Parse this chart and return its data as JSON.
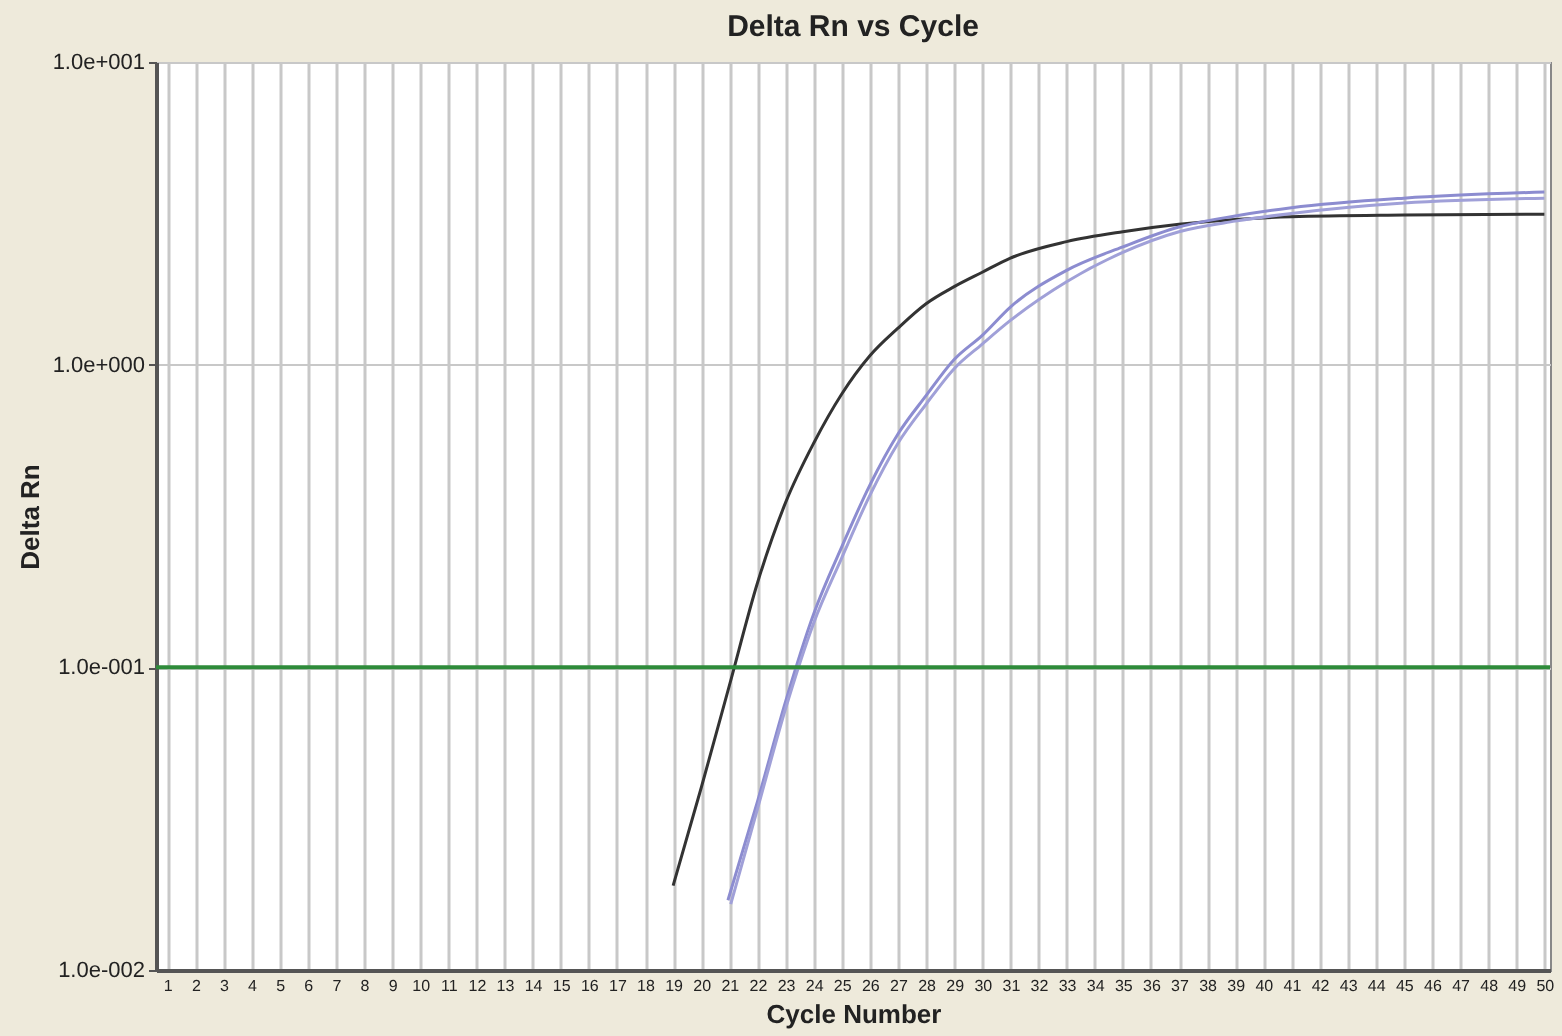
{
  "chart_data": {
    "type": "line",
    "title": "Delta Rn vs Cycle",
    "xlabel": "Cycle Number",
    "ylabel": "Delta Rn",
    "xlim": [
      0.6,
      50.2
    ],
    "xticks": [
      1,
      2,
      3,
      4,
      5,
      6,
      7,
      8,
      9,
      10,
      11,
      12,
      13,
      14,
      15,
      16,
      17,
      18,
      19,
      20,
      21,
      22,
      23,
      24,
      25,
      26,
      27,
      28,
      29,
      30,
      31,
      32,
      33,
      34,
      35,
      36,
      37,
      38,
      39,
      40,
      41,
      42,
      43,
      44,
      45,
      46,
      47,
      48,
      49,
      50
    ],
    "ylim": [
      0.01,
      10
    ],
    "yticks": [
      {
        "value": 0.01,
        "label": "1.0e-002"
      },
      {
        "value": 0.1,
        "label": "1.0e-001"
      },
      {
        "value": 1,
        "label": "1.0e+000"
      },
      {
        "value": 10,
        "label": "1.0e+001"
      }
    ],
    "log": "y",
    "grid": true,
    "legend": false,
    "marker": "none",
    "line_style": "solid",
    "ref_lines": [
      {
        "axis": "y",
        "value": 0.1,
        "color": "#2e8b3a"
      }
    ],
    "series": [
      {
        "color": "#333333",
        "x": [
          19,
          20,
          21,
          22,
          23,
          24,
          25,
          26,
          27,
          28,
          29,
          30,
          31,
          33,
          35,
          37,
          39,
          41,
          45,
          50
        ],
        "values": [
          0.019,
          0.04,
          0.087,
          0.19,
          0.35,
          0.55,
          0.8,
          1.07,
          1.32,
          1.59,
          1.81,
          2.02,
          2.25,
          2.55,
          2.75,
          2.91,
          3.02,
          3.08,
          3.12,
          3.14
        ]
      },
      {
        "color": "#8c8cd0",
        "x": [
          20.95,
          22,
          23,
          24,
          25,
          26,
          27,
          28,
          29,
          30,
          31,
          33,
          35,
          37,
          39,
          41,
          45,
          50
        ],
        "values": [
          0.017,
          0.036,
          0.077,
          0.15,
          0.25,
          0.4,
          0.59,
          0.79,
          1.04,
          1.25,
          1.55,
          2.05,
          2.45,
          2.85,
          3.1,
          3.3,
          3.55,
          3.72
        ]
      },
      {
        "color": "#a0a0d8",
        "x": [
          21.05,
          22,
          23,
          24,
          25,
          26,
          27,
          28,
          29,
          30,
          31,
          33,
          35,
          37,
          39,
          41,
          45,
          50
        ],
        "values": [
          0.0165,
          0.034,
          0.073,
          0.14,
          0.23,
          0.37,
          0.55,
          0.74,
          0.97,
          1.17,
          1.4,
          1.88,
          2.35,
          2.75,
          2.98,
          3.16,
          3.42,
          3.55
        ]
      }
    ]
  }
}
